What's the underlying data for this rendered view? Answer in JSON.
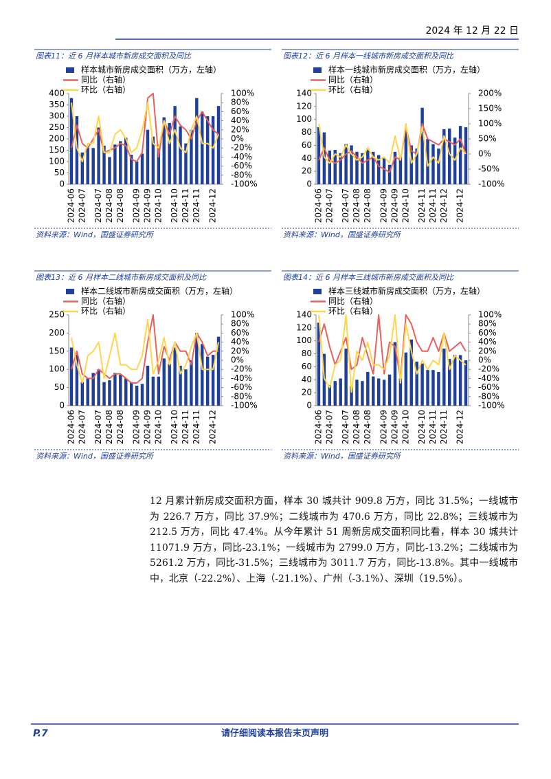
{
  "header": {
    "date": "2024 年 12 月 22 日"
  },
  "chart_data": [
    {
      "type": "bar-line",
      "title": "图表11：近 6 月样本城市新房成交面积及同比",
      "source": "资料来源：Wind，国盛证券研究所",
      "categories": [
        "2024-06",
        null,
        "2024-07",
        null,
        null,
        "2024-07",
        null,
        "2024-08",
        null,
        "2024-08",
        null,
        null,
        "2024-09",
        null,
        "2024-09",
        null,
        "2024-10",
        null,
        null,
        "2024-10",
        null,
        "2024-11",
        null,
        "2024-11",
        null,
        null,
        "2024-12",
        null
      ],
      "series": [
        {
          "name": "样本城市新房成交面积（万方，左轴）",
          "color": "#1f3f99",
          "values": [
            380,
            300,
            140,
            165,
            160,
            250,
            170,
            120,
            175,
            190,
            205,
            130,
            100,
            135,
            240,
            210,
            175,
            295,
            270,
            345,
            255,
            180,
            240,
            380,
            320,
            300,
            300,
            345
          ]
        },
        {
          "name": "同比（右轴）",
          "color": "#e8605c",
          "axis": "y2",
          "values": [
            -20,
            30,
            -10,
            -20,
            0,
            20,
            -30,
            -25,
            -20,
            -10,
            -15,
            -45,
            -50,
            -30,
            90,
            100,
            -40,
            40,
            10,
            50,
            30,
            20,
            0,
            40,
            60,
            40,
            20,
            10
          ]
        },
        {
          "name": "环比（右轴）",
          "color": "#ffd54f",
          "axis": "y2",
          "values": [
            80,
            -20,
            -50,
            -10,
            -10,
            50,
            -30,
            -30,
            10,
            20,
            0,
            -30,
            -20,
            20,
            80,
            -10,
            -20,
            40,
            -10,
            20,
            -20,
            -30,
            20,
            50,
            -10,
            -10,
            -20,
            10
          ]
        }
      ],
      "ylim": [
        0,
        400
      ],
      "yticks": [
        0,
        50,
        100,
        150,
        200,
        250,
        300,
        350,
        400
      ],
      "y2lim": [
        -100,
        100
      ],
      "y2ticks": [
        {
          "value": -100,
          "label": "-100%"
        },
        {
          "value": -80,
          "label": "-80%"
        },
        {
          "value": -60,
          "label": "-60%"
        },
        {
          "value": -40,
          "label": "-40%"
        },
        {
          "value": -20,
          "label": "-20%"
        },
        {
          "value": 0,
          "label": "0%"
        },
        {
          "value": 20,
          "label": "20%"
        },
        {
          "value": 40,
          "label": "40%"
        },
        {
          "value": 60,
          "label": "60%"
        },
        {
          "value": 80,
          "label": "80%"
        },
        {
          "value": 100,
          "label": "100%"
        }
      ]
    },
    {
      "type": "bar-line",
      "title": "图表12：近 6 月样本一线城市新房成交面积及同比",
      "source": "资料来源：Wind，国盛证券研究所",
      "categories": [
        "2024-06",
        null,
        "2024-07",
        null,
        null,
        "2024-07",
        null,
        "2024-08",
        null,
        "2024-08",
        null,
        null,
        "2024-09",
        null,
        "2024-09",
        null,
        "2024-10",
        null,
        null,
        "2024-11",
        null,
        "2024-11",
        null,
        "2024-12",
        null,
        null,
        "2024-12",
        null
      ],
      "series": [
        {
          "name": "样本一线城市新房成交面积（万方，左轴）",
          "color": "#1f3f99",
          "values": [
            88,
            80,
            52,
            53,
            48,
            62,
            60,
            50,
            48,
            55,
            50,
            45,
            40,
            30,
            50,
            42,
            85,
            60,
            55,
            118,
            70,
            62,
            55,
            85,
            86,
            72,
            90,
            88
          ]
        },
        {
          "name": "同比（右轴）",
          "color": "#e8605c",
          "axis": "y2",
          "values": [
            -20,
            20,
            -20,
            -30,
            -20,
            0,
            10,
            -10,
            -30,
            -20,
            -10,
            -40,
            -50,
            -60,
            -10,
            -20,
            90,
            10,
            0,
            100,
            50,
            40,
            30,
            50,
            40,
            30,
            50,
            0
          ]
        },
        {
          "name": "环比（右轴）",
          "color": "#ffd54f",
          "axis": "y2",
          "values": [
            100,
            -10,
            -30,
            0,
            -10,
            30,
            0,
            -20,
            -10,
            20,
            -10,
            -20,
            -10,
            -30,
            60,
            -20,
            100,
            -30,
            0,
            90,
            -40,
            -10,
            -30,
            60,
            0,
            -20,
            20,
            0
          ]
        }
      ],
      "ylim": [
        0,
        140
      ],
      "yticks": [
        0,
        20,
        40,
        60,
        80,
        100,
        120,
        140
      ],
      "y2lim": [
        -100,
        200
      ],
      "y2ticks": [
        {
          "value": -100,
          "label": "-100%"
        },
        {
          "value": -50,
          "label": "-50%"
        },
        {
          "value": 0,
          "label": "0%"
        },
        {
          "value": 50,
          "label": "50%"
        },
        {
          "value": 100,
          "label": "100%"
        },
        {
          "value": 150,
          "label": "150%"
        },
        {
          "value": 200,
          "label": "200%"
        }
      ]
    },
    {
      "type": "bar-line",
      "title": "图表13：近 6 月样本二线城市新房成交面积及同比",
      "source": "资料来源：Wind，国盛证券研究所",
      "categories": [
        "2024-06",
        null,
        "2024-07",
        null,
        null,
        "2024-07",
        null,
        "2024-08",
        null,
        "2024-08",
        null,
        null,
        "2024-09",
        null,
        "2024-09",
        null,
        "2024-10",
        null,
        null,
        "2024-10",
        null,
        "2024-11",
        null,
        "2024-11",
        null,
        null,
        "2024-12",
        null
      ],
      "series": [
        {
          "name": "样本二线城市新房成交面积（万方，左轴）",
          "color": "#1f3f99",
          "values": [
            160,
            140,
            65,
            75,
            90,
            100,
            65,
            70,
            90,
            85,
            75,
            65,
            55,
            60,
            110,
            80,
            80,
            130,
            115,
            160,
            110,
            100,
            125,
            200,
            170,
            135,
            140,
            190
          ]
        },
        {
          "name": "同比（右轴）",
          "color": "#e8605c",
          "axis": "y2",
          "values": [
            -20,
            20,
            -30,
            -40,
            -40,
            -20,
            -30,
            -40,
            -30,
            -30,
            -40,
            -50,
            -50,
            -40,
            40,
            100,
            -30,
            30,
            0,
            40,
            20,
            20,
            -10,
            60,
            40,
            10,
            20,
            20
          ]
        },
        {
          "name": "环比（右轴）",
          "color": "#ffd54f",
          "axis": "y2",
          "values": [
            50,
            -10,
            -50,
            10,
            20,
            40,
            -40,
            10,
            60,
            -10,
            -10,
            -20,
            -20,
            10,
            90,
            -30,
            0,
            50,
            -10,
            40,
            -30,
            -10,
            30,
            60,
            -20,
            -20,
            -20,
            40
          ]
        }
      ],
      "ylim": [
        0,
        250
      ],
      "yticks": [
        0,
        50,
        100,
        150,
        200,
        250
      ],
      "y2lim": [
        -100,
        100
      ],
      "y2ticks": [
        {
          "value": -100,
          "label": "-100%"
        },
        {
          "value": -80,
          "label": "-80%"
        },
        {
          "value": -60,
          "label": "-60%"
        },
        {
          "value": -40,
          "label": "-40%"
        },
        {
          "value": -20,
          "label": "-20%"
        },
        {
          "value": 0,
          "label": "0%"
        },
        {
          "value": 20,
          "label": "20%"
        },
        {
          "value": 40,
          "label": "40%"
        },
        {
          "value": 60,
          "label": "60%"
        },
        {
          "value": 80,
          "label": "80%"
        },
        {
          "value": 100,
          "label": "100%"
        }
      ]
    },
    {
      "type": "bar-line",
      "title": "图表14：近 6 月样本三线城市新房成交面积及同比",
      "source": "资料来源：Wind，国盛证券研究所",
      "categories": [
        "2024-06",
        null,
        "2024-07",
        null,
        null,
        "2024-07",
        null,
        "2024-08",
        null,
        "2024-08",
        null,
        null,
        "2024-09",
        null,
        "2024-09",
        null,
        "2024-10",
        null,
        null,
        "2024-10",
        null,
        "2024-11",
        null,
        "2024-11",
        null,
        null,
        "2024-12",
        null
      ],
      "series": [
        {
          "name": "样本三线城市新房成交面积（万方，左轴）",
          "color": "#1f3f99",
          "values": [
            128,
            80,
            32,
            38,
            42,
            88,
            30,
            40,
            38,
            52,
            45,
            42,
            40,
            48,
            98,
            42,
            82,
            102,
            68,
            65,
            55,
            55,
            52,
            88,
            72,
            78,
            78,
            70
          ]
        },
        {
          "name": "同比（右轴）",
          "color": "#e8605c",
          "axis": "y2",
          "values": [
            40,
            80,
            30,
            -10,
            20,
            50,
            -20,
            -10,
            50,
            10,
            -30,
            100,
            -30,
            40,
            30,
            -40,
            100,
            80,
            40,
            20,
            20,
            50,
            20,
            60,
            20,
            30,
            40,
            20
          ]
        },
        {
          "name": "环比（右轴）",
          "color": "#ffd54f",
          "axis": "y2",
          "values": [
            100,
            -40,
            -60,
            -10,
            0,
            100,
            -70,
            20,
            0,
            40,
            -10,
            -10,
            -20,
            10,
            100,
            -50,
            80,
            20,
            -30,
            0,
            -20,
            0,
            -10,
            60,
            -20,
            10,
            0,
            -10
          ]
        }
      ],
      "ylim": [
        0,
        140
      ],
      "yticks": [
        0,
        20,
        40,
        60,
        80,
        100,
        120,
        140
      ],
      "y2lim": [
        -100,
        100
      ],
      "y2ticks": [
        {
          "value": -100,
          "label": "-100%"
        },
        {
          "value": -80,
          "label": "-80%"
        },
        {
          "value": -60,
          "label": "-60%"
        },
        {
          "value": -40,
          "label": "-40%"
        },
        {
          "value": -20,
          "label": "-20%"
        },
        {
          "value": 0,
          "label": "0%"
        },
        {
          "value": 20,
          "label": "20%"
        },
        {
          "value": 40,
          "label": "40%"
        },
        {
          "value": 60,
          "label": "60%"
        },
        {
          "value": 80,
          "label": "80%"
        },
        {
          "value": 100,
          "label": "100%"
        }
      ]
    }
  ],
  "paragraph": "12 月累计新房成交面积方面，样本 30 城共计 909.8 万方，同比 31.5%；一线城市为 226.7 万方，同比 37.9%；二线城市为 470.6 万方，同比 22.8%；三线城市为 212.5 万方，同比 47.4%。从今年累计 51 周新房成交面积同比看，样本 30 城共计 11071.9 万方，同比-23.1%；一线城市为 2799.0 万方，同比-13.2%；二线城市为 5261.2 万方，同比-31.5%；三线城市为 3011.7 万方，同比-13.8%。其中一线城市中，北京（-22.2%）、上海（-21.1%）、广州（-3.1%）、深圳（19.5%）。",
  "footer": {
    "page": "P.7",
    "notice": "请仔细阅读本报告末页声明"
  }
}
